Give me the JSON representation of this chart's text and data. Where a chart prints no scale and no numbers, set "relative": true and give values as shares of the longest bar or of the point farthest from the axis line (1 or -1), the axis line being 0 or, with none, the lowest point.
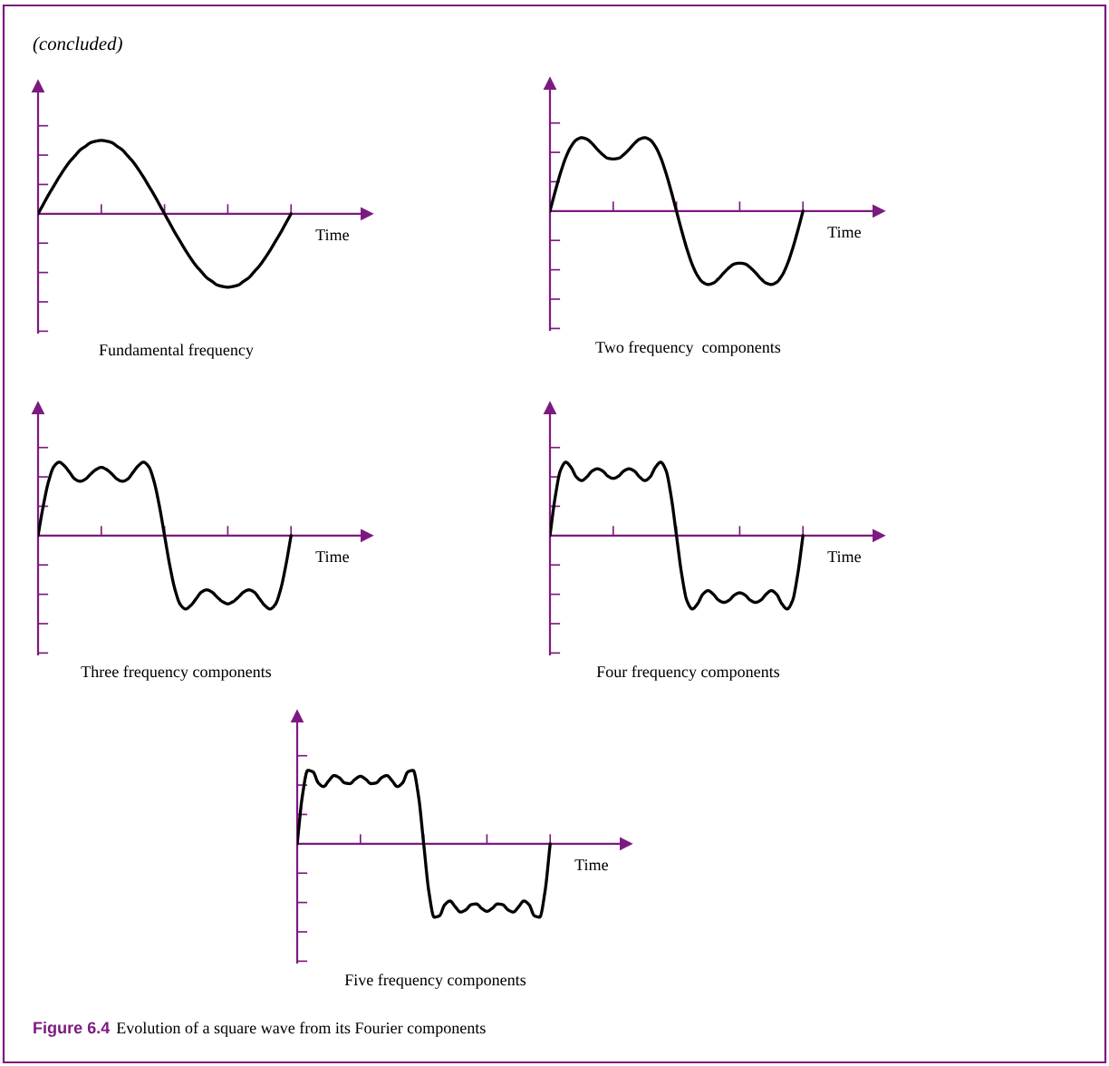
{
  "chart_data": [
    {
      "type": "line",
      "relative": true,
      "title": "Fundamental frequency",
      "xlabel": "Time",
      "ref_lines": [
        {
          "axis": "y",
          "value": 0,
          "color": "#7d1a80"
        }
      ],
      "annotations": [
        "(concluded)",
        "Figure 6.4",
        "Evolution of a square wave from its Fourier components"
      ],
      "categories": [
        null,
        null,
        null,
        null,
        null,
        null,
        null,
        null,
        null,
        null,
        null,
        null,
        null,
        null,
        null,
        null,
        null,
        null,
        null,
        null,
        null,
        null,
        null,
        null,
        null,
        null,
        null,
        null,
        null,
        null,
        null,
        null,
        null,
        null,
        null,
        null,
        null,
        null,
        null,
        null,
        null,
        null,
        null,
        null,
        null,
        null,
        null,
        null,
        null
      ],
      "series": [
        {
          "color": "#000000",
          "values": [
            0,
            0.13,
            0.26,
            0.38,
            0.5,
            0.61,
            0.71,
            0.79,
            0.87,
            0.92,
            0.97,
            0.99,
            1,
            0.99,
            0.97,
            0.92,
            0.87,
            0.79,
            0.71,
            0.61,
            0.5,
            0.38,
            0.26,
            0.13,
            0,
            -0.13,
            -0.26,
            -0.38,
            -0.5,
            -0.61,
            -0.71,
            -0.79,
            -0.87,
            -0.92,
            -0.97,
            -0.99,
            -1,
            -0.99,
            -0.97,
            -0.92,
            -0.87,
            -0.79,
            -0.71,
            -0.61,
            -0.5,
            -0.38,
            -0.26,
            -0.13,
            0
          ]
        }
      ]
    },
    {
      "type": "line",
      "relative": true,
      "title": "Two frequency  components",
      "xlabel": "Time",
      "ref_lines": [
        {
          "axis": "y",
          "value": 0,
          "color": "#7d1a80"
        }
      ],
      "categories": [
        null,
        null,
        null,
        null,
        null,
        null,
        null,
        null,
        null,
        null,
        null,
        null,
        null,
        null,
        null,
        null,
        null,
        null,
        null,
        null,
        null,
        null,
        null,
        null,
        null,
        null,
        null,
        null,
        null,
        null,
        null,
        null,
        null,
        null,
        null,
        null,
        null,
        null,
        null,
        null,
        null,
        null,
        null,
        null,
        null,
        null,
        null,
        null,
        null
      ],
      "series": [
        {
          "color": "#000000",
          "values": [
            0,
            0.27,
            0.52,
            0.73,
            0.88,
            0.97,
            1,
            0.98,
            0.92,
            0.84,
            0.77,
            0.72,
            0.71,
            0.72,
            0.77,
            0.84,
            0.92,
            0.98,
            1,
            0.97,
            0.88,
            0.73,
            0.52,
            0.27,
            0,
            -0.27,
            -0.52,
            -0.73,
            -0.88,
            -0.97,
            -1,
            -0.98,
            -0.92,
            -0.84,
            -0.77,
            -0.72,
            -0.71,
            -0.72,
            -0.77,
            -0.84,
            -0.92,
            -0.98,
            -1,
            -0.97,
            -0.88,
            -0.73,
            -0.52,
            -0.27,
            0
          ]
        }
      ]
    },
    {
      "type": "line",
      "relative": true,
      "title": "Three frequency components",
      "xlabel": "Time",
      "ref_lines": [
        {
          "axis": "y",
          "value": 0,
          "color": "#7d1a80"
        }
      ],
      "categories": [
        null,
        null,
        null,
        null,
        null,
        null,
        null,
        null,
        null,
        null,
        null,
        null,
        null,
        null,
        null,
        null,
        null,
        null,
        null,
        null,
        null,
        null,
        null,
        null,
        null,
        null,
        null,
        null,
        null,
        null,
        null,
        null,
        null,
        null,
        null,
        null,
        null,
        null,
        null,
        null,
        null,
        null,
        null,
        null,
        null,
        null,
        null,
        null,
        null
      ],
      "series": [
        {
          "color": "#000000",
          "values": [
            0,
            0.41,
            0.74,
            0.94,
            1,
            0.95,
            0.86,
            0.77,
            0.74,
            0.77,
            0.84,
            0.9,
            0.93,
            0.9,
            0.84,
            0.77,
            0.74,
            0.77,
            0.86,
            0.95,
            1,
            0.94,
            0.74,
            0.41,
            0,
            -0.41,
            -0.74,
            -0.94,
            -1,
            -0.95,
            -0.86,
            -0.77,
            -0.74,
            -0.77,
            -0.84,
            -0.9,
            -0.93,
            -0.9,
            -0.84,
            -0.77,
            -0.74,
            -0.77,
            -0.86,
            -0.95,
            -1,
            -0.94,
            -0.74,
            -0.41,
            0
          ]
        }
      ]
    },
    {
      "type": "line",
      "relative": true,
      "title": "Four frequency components",
      "xlabel": "Time",
      "ref_lines": [
        {
          "axis": "y",
          "value": 0,
          "color": "#7d1a80"
        }
      ],
      "categories": [
        null,
        null,
        null,
        null,
        null,
        null,
        null,
        null,
        null,
        null,
        null,
        null,
        null,
        null,
        null,
        null,
        null,
        null,
        null,
        null,
        null,
        null,
        null,
        null,
        null,
        null,
        null,
        null,
        null,
        null,
        null,
        null,
        null,
        null,
        null,
        null,
        null,
        null,
        null,
        null,
        null,
        null,
        null,
        null,
        null,
        null,
        null,
        null,
        null
      ],
      "series": [
        {
          "color": "#000000",
          "values": [
            0,
            0.53,
            0.89,
            1,
            0.93,
            0.8,
            0.75,
            0.8,
            0.88,
            0.91,
            0.88,
            0.81,
            0.78,
            0.81,
            0.88,
            0.91,
            0.88,
            0.8,
            0.75,
            0.8,
            0.93,
            1,
            0.89,
            0.53,
            0,
            -0.53,
            -0.89,
            -1,
            -0.93,
            -0.8,
            -0.75,
            -0.8,
            -0.88,
            -0.91,
            -0.88,
            -0.81,
            -0.78,
            -0.81,
            -0.88,
            -0.91,
            -0.88,
            -0.8,
            -0.75,
            -0.8,
            -0.93,
            -1,
            -0.89,
            -0.53,
            0
          ]
        }
      ]
    },
    {
      "type": "line",
      "relative": true,
      "title": "Five frequency components",
      "xlabel": "Time",
      "ref_lines": [
        {
          "axis": "y",
          "value": 0,
          "color": "#7d1a80"
        }
      ],
      "categories": [
        null,
        null,
        null,
        null,
        null,
        null,
        null,
        null,
        null,
        null,
        null,
        null,
        null,
        null,
        null,
        null,
        null,
        null,
        null,
        null,
        null,
        null,
        null,
        null,
        null,
        null,
        null,
        null,
        null,
        null,
        null,
        null,
        null,
        null,
        null,
        null,
        null,
        null,
        null,
        null,
        null,
        null,
        null,
        null,
        null,
        null,
        null,
        null,
        null
      ],
      "series": [
        {
          "color": "#000000",
          "values": [
            0,
            0.66,
            1,
            0.98,
            0.83,
            0.78,
            0.86,
            0.93,
            0.9,
            0.83,
            0.82,
            0.88,
            0.92,
            0.88,
            0.82,
            0.83,
            0.9,
            0.93,
            0.86,
            0.78,
            0.83,
            0.98,
            1,
            0.66,
            0,
            -0.66,
            -1,
            -0.98,
            -0.83,
            -0.78,
            -0.86,
            -0.93,
            -0.9,
            -0.83,
            -0.82,
            -0.88,
            -0.92,
            -0.88,
            -0.82,
            -0.83,
            -0.9,
            -0.93,
            -0.86,
            -0.78,
            -0.83,
            -0.98,
            -1,
            -0.66,
            0
          ]
        }
      ]
    }
  ]
}
